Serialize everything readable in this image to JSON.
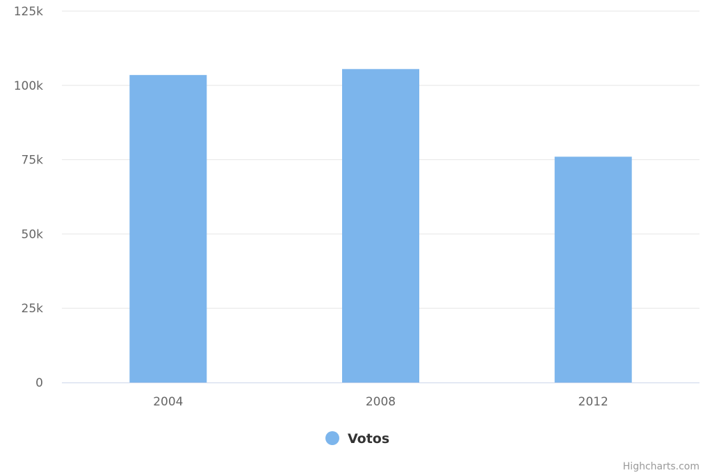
{
  "chart_data": {
    "type": "bar",
    "categories": [
      "2004",
      "2008",
      "2012"
    ],
    "series": [
      {
        "name": "Votos",
        "values": [
          103500,
          105500,
          76000
        ],
        "color": "#7cb5ec"
      }
    ],
    "ylim": [
      0,
      125000
    ],
    "yticks": [
      0,
      25000,
      50000,
      75000,
      100000,
      125000
    ],
    "ytick_labels": [
      "0",
      "25k",
      "50k",
      "75k",
      "100k",
      "125k"
    ],
    "grid": true,
    "legend": "bottom-center",
    "title": "",
    "xlabel": "",
    "ylabel": ""
  },
  "credits": "Highcharts.com",
  "colors": {
    "grid": "#e6e6e6",
    "axis_line": "#ccd6eb",
    "tick_text": "#666666"
  }
}
